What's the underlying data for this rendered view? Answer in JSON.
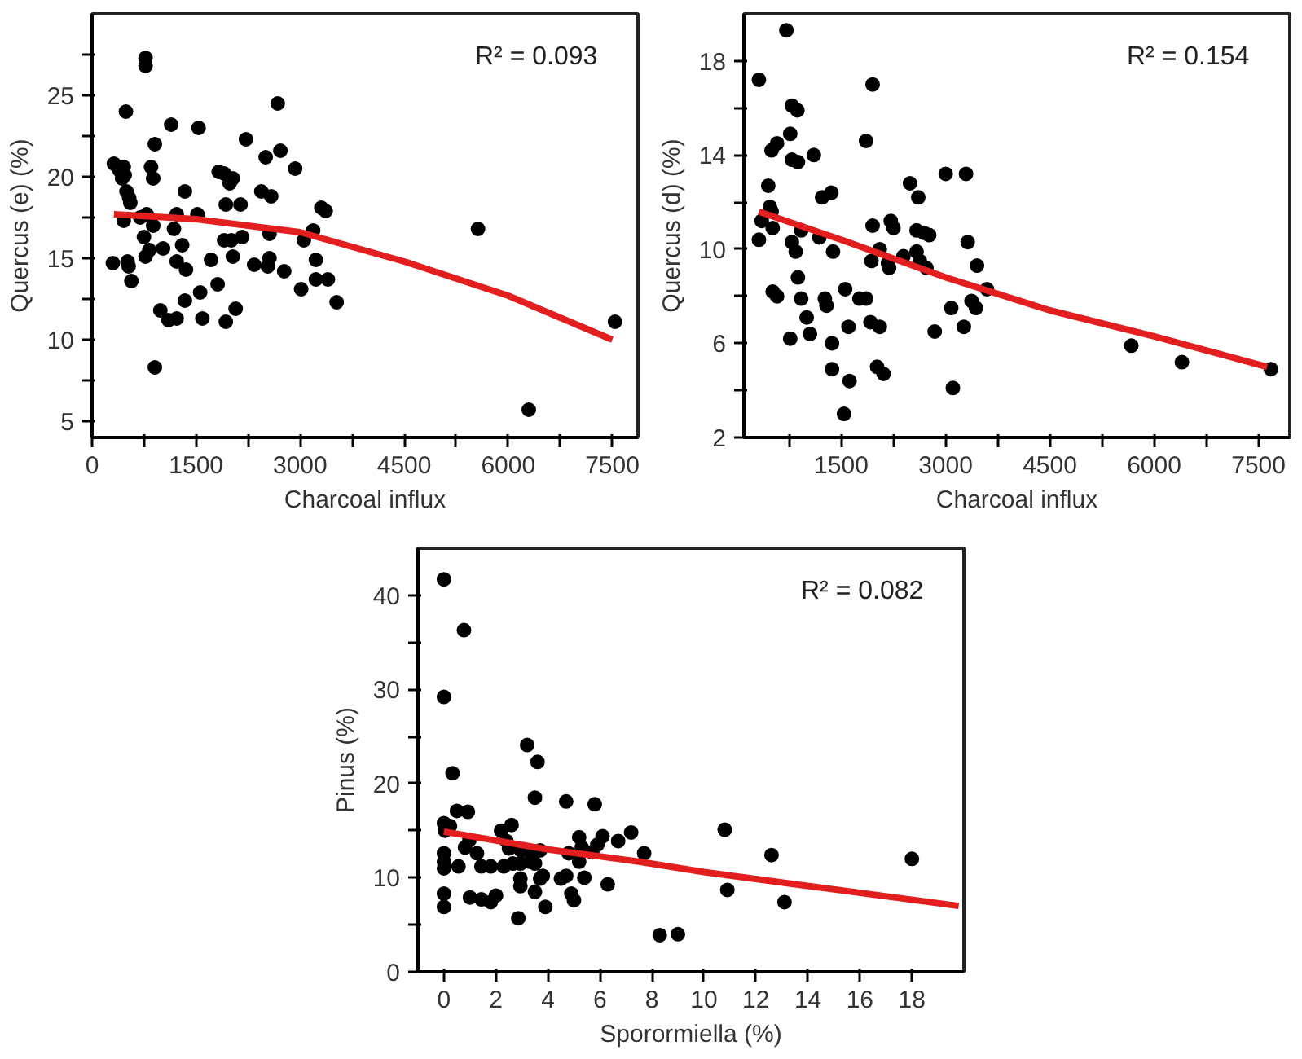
{
  "chart_data": [
    {
      "type": "scatter",
      "xlabel": "Charcoal influx",
      "ylabel": "Quercus (e) (%)",
      "annotations": [
        "R² = 0.093"
      ],
      "xlim": [
        0,
        7870
      ],
      "ylim": [
        4,
        30
      ],
      "grid": false,
      "xticks": [
        0,
        {
          "value": 750,
          "label": null
        },
        1500,
        {
          "value": 2250,
          "label": null
        },
        3000,
        {
          "value": 3750,
          "label": null
        },
        4500,
        {
          "value": 5250,
          "label": null
        },
        6000,
        {
          "value": 6750,
          "label": null
        },
        7500
      ],
      "yticks": [
        5,
        {
          "value": 7.5,
          "label": null
        },
        10,
        {
          "value": 12.5,
          "label": null
        },
        15,
        {
          "value": 17.5,
          "label": null
        },
        20,
        {
          "value": 22.5,
          "label": null
        },
        25,
        {
          "value": 27.5,
          "label": null
        }
      ],
      "series": [
        {
          "marker": "circle",
          "color": "#000000",
          "x": [
            315,
            394,
            456,
            433,
            470,
            488,
            300,
            456,
            496,
            535,
            551,
            512,
            527,
            567,
            771,
            771,
            693,
            787,
            748,
            771,
            826,
            905,
            850,
            881,
            881,
            905,
            1023,
            984,
            1102,
            1141,
            1181,
            1220,
            1220,
            1220,
            1299,
            1338,
            1354,
            1338,
            1535,
            1519,
            1558,
            1590,
            1716,
            1810,
            1826,
            1904,
            1928,
            1904,
            1928,
            1983,
            2030,
            2007,
            2030,
            2070,
            2140,
            2164,
            2219,
            2337,
            2440,
            2503,
            2582,
            2558,
            2558,
            2534,
            2676,
            2715,
            2770,
            2928,
            3014,
            3053,
            3187,
            3227,
            3227,
            3305,
            3368,
            3400,
            3526,
            5564,
            6296,
            7539
          ],
          "values": [
            20.8,
            20.4,
            20.6,
            19.9,
            20.1,
            24.0,
            14.7,
            17.3,
            19.1,
            18.7,
            18.4,
            14.8,
            14.5,
            13.6,
            27.3,
            26.8,
            17.5,
            17.7,
            16.3,
            15.1,
            15.5,
            22.0,
            20.6,
            19.9,
            17.0,
            8.3,
            15.6,
            11.8,
            11.2,
            23.2,
            16.8,
            17.7,
            14.8,
            11.3,
            15.8,
            19.1,
            14.3,
            12.4,
            23.0,
            17.7,
            12.9,
            11.3,
            14.9,
            13.4,
            20.3,
            20.2,
            18.3,
            16.1,
            11.1,
            19.6,
            19.9,
            16.1,
            15.1,
            11.9,
            18.3,
            16.3,
            22.3,
            14.6,
            19.1,
            21.2,
            18.8,
            16.5,
            15.0,
            14.5,
            24.5,
            21.6,
            14.2,
            20.5,
            13.1,
            16.1,
            16.7,
            14.9,
            13.7,
            18.1,
            17.9,
            13.7,
            12.3,
            16.8,
            5.7,
            11.1
          ]
        },
        {
          "type": "line",
          "marker": "none",
          "color": "#e31e1e",
          "x": [
            315,
            1500,
            3000,
            4500,
            6000,
            7500
          ],
          "values": [
            17.7,
            17.4,
            16.6,
            14.8,
            12.7,
            10.0
          ]
        }
      ]
    },
    {
      "type": "scatter",
      "xlabel": "Charcoal influx",
      "ylabel": "Quercus (d) (%)",
      "annotations": [
        "R² = 0.154"
      ],
      "xlim": [
        100,
        7950
      ],
      "ylim": [
        2,
        20
      ],
      "grid": false,
      "xticks": [
        {
          "value": 750,
          "label": null
        },
        1500,
        {
          "value": 2250,
          "label": null
        },
        3000,
        {
          "value": 3750,
          "label": null
        },
        4500,
        {
          "value": 5250,
          "label": null
        },
        6000,
        {
          "value": 6750,
          "label": null
        },
        7500
      ],
      "yticks": [
        2,
        {
          "value": 4,
          "label": null
        },
        6,
        {
          "value": 8,
          "label": null
        },
        10,
        {
          "value": 12,
          "label": null
        },
        14,
        {
          "value": 16,
          "label": null
        },
        18
      ],
      "series": [
        {
          "marker": "circle",
          "color": "#000000",
          "x": [
            316,
            316,
            356,
            450,
            474,
            498,
            514,
            498,
            577,
            514,
            577,
            711,
            766,
            790,
            869,
            790,
            877,
            790,
            845,
            924,
            877,
            924,
            766,
            1003,
            1050,
            1106,
            1185,
            1225,
            1358,
            1382,
            1264,
            1288,
            1367,
            1367,
            1556,
            1604,
            1619,
            1540,
            1761,
            1857,
            1857,
            1951,
            1951,
            1935,
            1920,
            2054,
            2054,
            2015,
            2109,
            2172,
            2188,
            2212,
            2251,
            2394,
            2489,
            2583,
            2607,
            2583,
            2630,
            2686,
            2725,
            2765,
            2844,
            3002,
            3081,
            3105,
            3263,
            3294,
            3318,
            3373,
            3437,
            3452,
            3595,
            5672,
            6399,
            7679
          ],
          "values": [
            17.2,
            10.4,
            11.2,
            12.7,
            11.8,
            11.6,
            10.9,
            14.2,
            14.5,
            8.2,
            8.0,
            19.3,
            14.9,
            16.1,
            15.9,
            13.8,
            13.7,
            10.3,
            9.9,
            10.8,
            8.8,
            7.9,
            6.2,
            7.1,
            6.4,
            14.0,
            10.5,
            12.2,
            12.4,
            9.9,
            7.9,
            7.6,
            6.0,
            4.9,
            8.3,
            6.7,
            4.4,
            3.0,
            7.9,
            7.9,
            14.6,
            17.0,
            11.0,
            9.5,
            6.9,
            10.0,
            6.7,
            5.0,
            4.7,
            9.4,
            9.2,
            11.2,
            10.9,
            9.7,
            12.8,
            10.8,
            12.2,
            9.9,
            9.5,
            10.7,
            9.2,
            10.6,
            6.5,
            13.2,
            7.5,
            4.1,
            6.7,
            13.2,
            10.3,
            7.8,
            7.5,
            9.3,
            8.3,
            5.9,
            5.2,
            4.9
          ]
        },
        {
          "type": "line",
          "marker": "none",
          "color": "#e31e1e",
          "x": [
            316,
            1500,
            3000,
            4500,
            6000,
            7624
          ],
          "values": [
            11.6,
            10.4,
            8.8,
            7.4,
            6.3,
            5.0
          ]
        }
      ]
    },
    {
      "type": "scatter",
      "xlabel": "Sporormiella (%)",
      "ylabel": "Pinus (%)",
      "annotations": [
        "R² = 0.082"
      ],
      "xlim": [
        -1,
        20
      ],
      "ylim": [
        0,
        45
      ],
      "grid": false,
      "xticks": [
        0,
        2,
        4,
        6,
        8,
        10,
        12,
        14,
        16,
        18
      ],
      "yticks": [
        0,
        {
          "value": 5,
          "label": null
        },
        10,
        {
          "value": 15,
          "label": null
        },
        20,
        {
          "value": 25,
          "label": null
        },
        30,
        {
          "value": 35,
          "label": null
        },
        40
      ],
      "series": [
        {
          "marker": "circle",
          "color": "#000000",
          "x": [
            0,
            0,
            0,
            0.04,
            0.23,
            0,
            0,
            0,
            0,
            0,
            0.33,
            0.77,
            0.5,
            0.92,
            0.56,
            0.81,
            0.98,
            1.0,
            1.27,
            1.44,
            1.44,
            1.8,
            1.8,
            2.0,
            2.2,
            2.3,
            2.4,
            2.5,
            2.6,
            2.65,
            2.86,
            2.96,
            2.94,
            2.94,
            2.94,
            3.2,
            3.3,
            3.4,
            3.5,
            3.5,
            3.5,
            3.6,
            3.7,
            3.7,
            3.8,
            3.9,
            4.5,
            4.7,
            4.7,
            4.8,
            4.9,
            5.0,
            5.2,
            5.2,
            5.3,
            5.4,
            5.7,
            5.8,
            5.9,
            6.1,
            6.3,
            6.7,
            7.2,
            7.7,
            8.3,
            9.0,
            10.8,
            10.9,
            12.6,
            13.1,
            18.0
          ],
          "values": [
            41.7,
            29.2,
            15.8,
            15.0,
            15.5,
            12.6,
            11.7,
            11.0,
            8.3,
            6.9,
            21.1,
            36.3,
            17.1,
            17.0,
            11.2,
            13.2,
            14.0,
            7.9,
            12.6,
            11.2,
            7.7,
            11.2,
            7.4,
            8.1,
            15.0,
            11.2,
            13.9,
            13.1,
            15.6,
            11.5,
            5.7,
            12.9,
            11.5,
            9.9,
            9.1,
            24.1,
            11.7,
            12.6,
            18.5,
            8.5,
            11.5,
            22.3,
            12.9,
            9.9,
            10.2,
            6.9,
            9.9,
            10.2,
            18.1,
            12.6,
            8.3,
            7.6,
            14.3,
            11.7,
            13.2,
            10.0,
            12.7,
            17.8,
            13.5,
            14.4,
            9.3,
            13.9,
            14.8,
            12.6,
            3.9,
            4.0,
            15.1,
            8.7,
            12.4,
            7.4,
            12.0
          ]
        },
        {
          "type": "line",
          "marker": "none",
          "color": "#e31e1e",
          "x": [
            0,
            4,
            7.5,
            10,
            13.8,
            19.8
          ],
          "values": [
            14.9,
            13.0,
            11.7,
            10.6,
            9.2,
            7.0
          ]
        }
      ]
    }
  ]
}
